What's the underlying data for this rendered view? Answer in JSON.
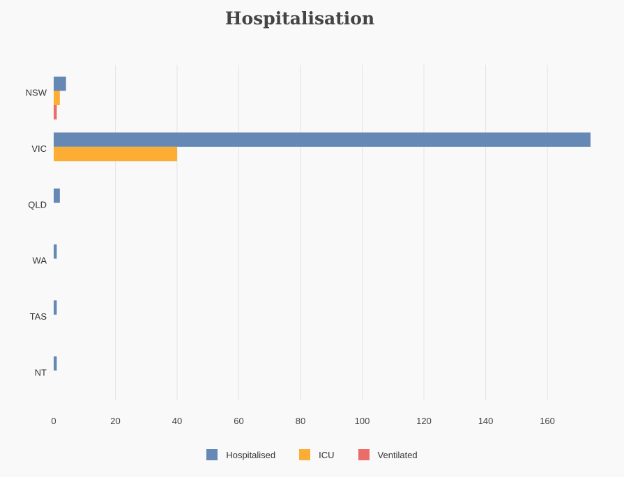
{
  "chart_data": {
    "type": "bar",
    "orientation": "horizontal",
    "title": "Hospitalisation",
    "categories": [
      "NSW",
      "VIC",
      "QLD",
      "WA",
      "TAS",
      "NT"
    ],
    "series": [
      {
        "name": "Hospitalised",
        "color": "#6588b5",
        "values": [
          4,
          174,
          2,
          1,
          1,
          1
        ]
      },
      {
        "name": "ICU",
        "color": "#fcae34",
        "values": [
          2,
          40,
          0,
          0,
          0,
          0
        ]
      },
      {
        "name": "Ventilated",
        "color": "#ea6d6a",
        "values": [
          1,
          0,
          0,
          0,
          0,
          0
        ]
      }
    ],
    "xlim": [
      0,
      174
    ],
    "xticks": [
      0,
      20,
      40,
      60,
      80,
      100,
      120,
      140,
      160
    ],
    "grid": true,
    "legend_position": "bottom"
  }
}
